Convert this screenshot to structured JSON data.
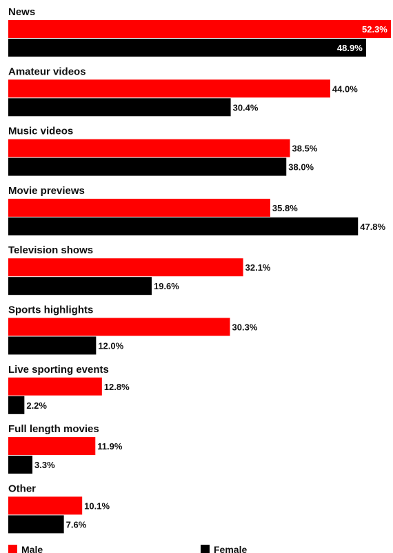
{
  "chart_data": {
    "type": "bar",
    "orientation": "horizontal",
    "categories": [
      "News",
      "Amateur videos",
      "Music videos",
      "Movie previews",
      "Television shows",
      "Sports highlights",
      "Live sporting events",
      "Full length movies",
      "Other"
    ],
    "series": [
      {
        "name": "Male",
        "color": "#ff0000",
        "values": [
          52.3,
          44.0,
          38.5,
          35.8,
          32.1,
          30.3,
          12.8,
          11.9,
          10.1
        ]
      },
      {
        "name": "Female",
        "color": "#000000",
        "values": [
          48.9,
          30.4,
          38.0,
          47.8,
          19.6,
          12.0,
          2.2,
          3.3,
          7.6
        ]
      }
    ],
    "value_suffix": "%",
    "xlim": [
      0,
      52.3
    ],
    "grid": false,
    "legend": "bottom"
  }
}
